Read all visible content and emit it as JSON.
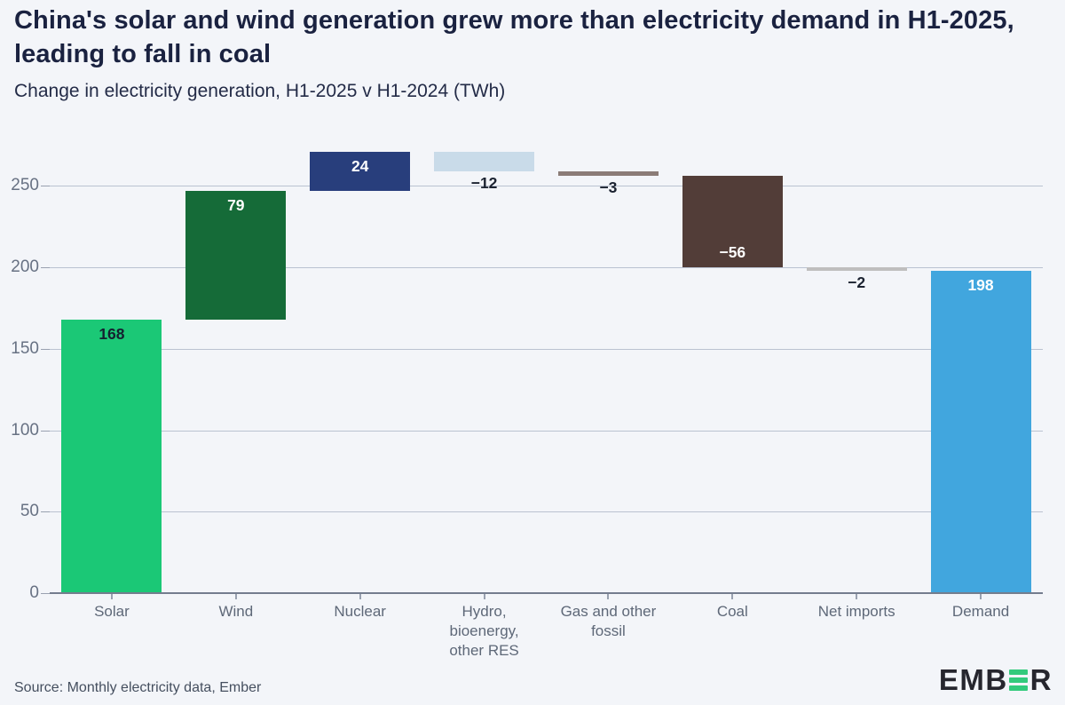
{
  "page": {
    "background": "#F3F5F9"
  },
  "footer": {
    "source": "Source: Monthly electricity data, Ember",
    "logo": {
      "prefix": "EMB",
      "suffix": "R",
      "bars_color": "#33CA7C",
      "text_color": "#26262E"
    }
  },
  "chart_data": {
    "type": "bar",
    "subtype": "waterfall",
    "title": "China's solar and wind generation grew more than electricity demand in H1-2025, leading to fall in coal",
    "subtitle": "Change in electricity generation, H1-2025 v H1-2024 (TWh)",
    "unit": "TWh",
    "ylim": [
      0,
      282
    ],
    "y_ticks": [
      0,
      50,
      100,
      150,
      200,
      250
    ],
    "grid": true,
    "legend": "none",
    "bars": [
      {
        "category": "Solar",
        "value": 168,
        "label": "168",
        "color": "#1BC876",
        "label_color": "#152030",
        "label_placement": "inside",
        "is_total": false
      },
      {
        "category": "Wind",
        "value": 79,
        "label": "79",
        "color": "#156B38",
        "label_color": "#FFFFFF",
        "label_placement": "inside",
        "is_total": false
      },
      {
        "category": "Nuclear",
        "value": 24,
        "label": "24",
        "color": "#283E7C",
        "label_color": "#FFFFFF",
        "label_placement": "inside",
        "is_total": false
      },
      {
        "category": "Hydro,\nbioenergy,\nother RES",
        "value": -12,
        "label": "−12",
        "color": "#C9DBE9",
        "label_color": "#1B2230",
        "label_placement": "below",
        "is_total": false
      },
      {
        "category": "Gas and other\nfossil",
        "value": -3,
        "label": "−3",
        "color": "#8B7C77",
        "label_color": "#1B2230",
        "label_placement": "below",
        "is_total": false
      },
      {
        "category": "Coal",
        "value": -56,
        "label": "−56",
        "color": "#523D38",
        "label_color": "#FFFFFF",
        "label_placement": "inside",
        "is_total": false
      },
      {
        "category": "Net imports",
        "value": -2,
        "label": "−2",
        "color": "#BFBEBE",
        "label_color": "#1B2230",
        "label_placement": "below",
        "is_total": false
      },
      {
        "category": "Demand",
        "value": 198,
        "label": "198",
        "color": "#41A6DE",
        "label_color": "#FFFFFF",
        "label_placement": "inside",
        "is_total": true
      }
    ]
  }
}
